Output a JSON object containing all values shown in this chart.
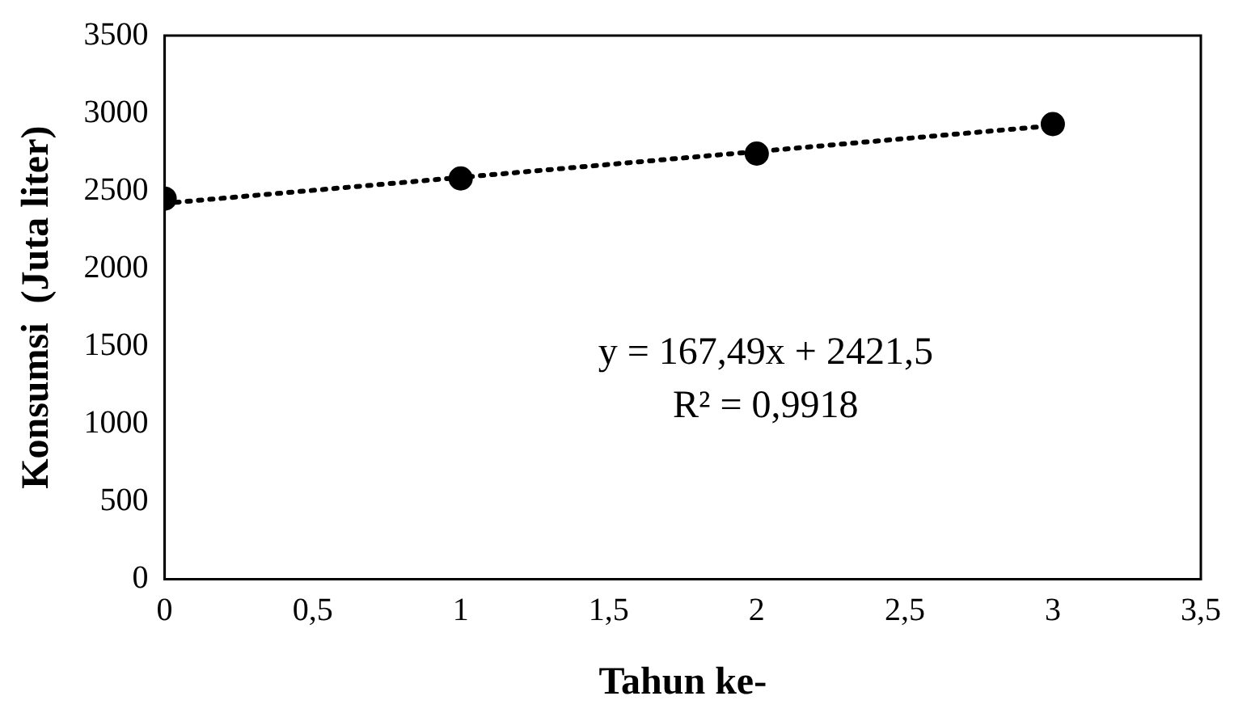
{
  "chart_data": {
    "type": "scatter",
    "xlabel": "Tahun ke-",
    "ylabel": "Konsumsi  (Juta liter)",
    "x": [
      0,
      1,
      2,
      3
    ],
    "series": [
      {
        "type": "scatter",
        "color": "#000000",
        "marker": "circle",
        "values": [
          2450,
          2580,
          2740,
          2930
        ]
      },
      {
        "type": "line",
        "color": "#000000",
        "line_style": "dotted",
        "marker": "none",
        "x": [
          0,
          3
        ],
        "values": [
          2420,
          2920
        ]
      }
    ],
    "xlim": [
      0,
      3.5
    ],
    "xticks": [
      {
        "value": 0,
        "label": "0"
      },
      {
        "value": 0.5,
        "label": "0,5"
      },
      {
        "value": 1,
        "label": "1"
      },
      {
        "value": 1.5,
        "label": "1,5"
      },
      {
        "value": 2,
        "label": "2"
      },
      {
        "value": 2.5,
        "label": "2,5"
      },
      {
        "value": 3,
        "label": "3"
      },
      {
        "value": 3.5,
        "label": "3,5"
      }
    ],
    "ylim": [
      0,
      3500
    ],
    "yticks": [
      0,
      500,
      1000,
      1500,
      2000,
      2500,
      3000,
      3500
    ],
    "grid": false,
    "legend": false,
    "annotations": [
      "y = 167,49x + 2421,5",
      "R² = 0,9918"
    ]
  }
}
